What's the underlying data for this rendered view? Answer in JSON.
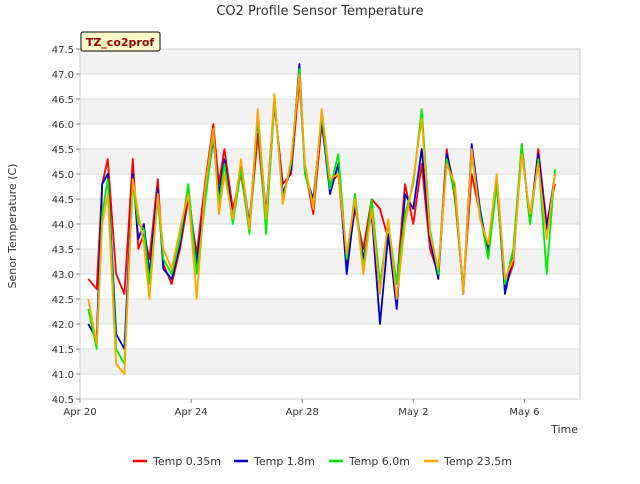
{
  "chart_data": {
    "type": "line",
    "title": "CO2 Profile Sensor Temperature",
    "xlabel": "Time",
    "ylabel": "Senor Temperature (C)",
    "site_label": "TZ_co2prof",
    "ylim": [
      40.5,
      47.5
    ],
    "xlim": [
      0,
      18
    ],
    "y_ticks": [
      40.5,
      41.0,
      41.5,
      42.0,
      42.5,
      43.0,
      43.5,
      44.0,
      44.5,
      45.0,
      45.5,
      46.0,
      46.5,
      47.0,
      47.5
    ],
    "x_ticks": [
      {
        "value": 0,
        "label": "Apr 20"
      },
      {
        "value": 4,
        "label": "Apr 24"
      },
      {
        "value": 8,
        "label": "Apr 28"
      },
      {
        "value": 12,
        "label": "May 2"
      },
      {
        "value": 16,
        "label": "May 6"
      }
    ],
    "x_units": "days since Apr 20",
    "legend_position": "bottom",
    "series": [
      {
        "name": "Temp 0.35m",
        "color": "#ff0000",
        "x": [
          0.3,
          0.6,
          0.8,
          1.0,
          1.3,
          1.6,
          1.9,
          2.1,
          2.3,
          2.5,
          2.8,
          3.0,
          3.3,
          3.6,
          3.9,
          4.2,
          4.5,
          4.8,
          5.0,
          5.2,
          5.5,
          5.8,
          6.1,
          6.4,
          6.7,
          7.0,
          7.3,
          7.6,
          7.9,
          8.1,
          8.4,
          8.7,
          9.0,
          9.3,
          9.6,
          9.9,
          10.2,
          10.5,
          10.8,
          11.1,
          11.4,
          11.7,
          12.0,
          12.3,
          12.6,
          12.9,
          13.2,
          13.5,
          13.8,
          14.1,
          14.4,
          14.7,
          15.0,
          15.3,
          15.6,
          15.9,
          16.2,
          16.5,
          16.8,
          17.1
        ],
        "y": [
          42.9,
          42.7,
          44.8,
          45.3,
          43.0,
          42.6,
          45.3,
          43.5,
          43.8,
          43.3,
          44.9,
          43.2,
          42.8,
          43.5,
          44.5,
          43.4,
          44.8,
          46.0,
          44.8,
          45.5,
          44.3,
          45.0,
          43.9,
          45.8,
          44.0,
          46.4,
          44.8,
          45.0,
          46.9,
          45.1,
          44.2,
          46.0,
          44.8,
          45.0,
          43.2,
          44.3,
          43.5,
          44.5,
          44.3,
          43.7,
          42.8,
          44.8,
          44.0,
          45.2,
          43.5,
          43.0,
          45.5,
          44.5,
          42.7,
          45.0,
          44.2,
          43.5,
          44.8,
          42.7,
          43.2,
          45.6,
          44.0,
          45.5,
          44.0,
          44.8
        ]
      },
      {
        "name": "Temp 1.8m",
        "color": "#0000cc",
        "x": [
          0.3,
          0.6,
          0.8,
          1.0,
          1.3,
          1.6,
          1.9,
          2.1,
          2.3,
          2.5,
          2.8,
          3.0,
          3.3,
          3.6,
          3.9,
          4.2,
          4.5,
          4.8,
          5.0,
          5.2,
          5.5,
          5.8,
          6.1,
          6.4,
          6.7,
          7.0,
          7.3,
          7.6,
          7.9,
          8.1,
          8.4,
          8.7,
          9.0,
          9.3,
          9.6,
          9.9,
          10.2,
          10.5,
          10.8,
          11.1,
          11.4,
          11.7,
          12.0,
          12.3,
          12.6,
          12.9,
          13.2,
          13.5,
          13.8,
          14.1,
          14.4,
          14.7,
          15.0,
          15.3,
          15.6,
          15.9,
          16.2,
          16.5,
          16.8,
          17.1
        ],
        "y": [
          42.0,
          41.7,
          44.8,
          45.0,
          41.8,
          41.5,
          45.0,
          43.7,
          44.0,
          43.0,
          44.7,
          43.1,
          42.9,
          43.6,
          44.7,
          43.2,
          44.5,
          45.7,
          44.6,
          45.3,
          44.1,
          45.2,
          44.0,
          46.1,
          44.2,
          46.5,
          44.6,
          45.1,
          47.2,
          45.0,
          44.5,
          46.1,
          44.6,
          45.2,
          43.0,
          44.4,
          43.3,
          44.2,
          42.0,
          43.8,
          42.3,
          44.6,
          44.3,
          45.5,
          43.7,
          42.9,
          45.4,
          44.7,
          42.6,
          45.6,
          44.3,
          43.4,
          44.9,
          42.6,
          43.4,
          45.5,
          44.1,
          45.4,
          43.9,
          45.0
        ]
      },
      {
        "name": "Temp 6.0m",
        "color": "#00ee00",
        "x": [
          0.3,
          0.6,
          0.8,
          1.0,
          1.3,
          1.6,
          1.9,
          2.1,
          2.3,
          2.5,
          2.8,
          3.0,
          3.3,
          3.6,
          3.9,
          4.2,
          4.5,
          4.8,
          5.0,
          5.2,
          5.5,
          5.8,
          6.1,
          6.4,
          6.7,
          7.0,
          7.3,
          7.6,
          7.9,
          8.1,
          8.4,
          8.7,
          9.0,
          9.3,
          9.6,
          9.9,
          10.2,
          10.5,
          10.8,
          11.1,
          11.4,
          11.7,
          12.0,
          12.3,
          12.6,
          12.9,
          13.2,
          13.5,
          13.8,
          14.1,
          14.4,
          14.7,
          15.0,
          15.3,
          15.6,
          15.9,
          16.2,
          16.5,
          16.8,
          17.1
        ],
        "y": [
          42.3,
          41.5,
          44.2,
          44.9,
          41.5,
          41.2,
          44.8,
          44.0,
          43.9,
          42.8,
          44.5,
          43.3,
          43.0,
          43.7,
          44.8,
          43.0,
          44.4,
          45.8,
          44.4,
          45.2,
          44.0,
          45.1,
          43.8,
          46.2,
          43.8,
          46.5,
          44.5,
          45.2,
          47.1,
          45.0,
          44.4,
          46.2,
          44.7,
          45.4,
          43.3,
          44.6,
          43.1,
          44.5,
          42.8,
          44.0,
          42.8,
          44.2,
          44.8,
          46.3,
          43.9,
          43.0,
          45.3,
          44.6,
          42.7,
          45.4,
          44.2,
          43.3,
          44.8,
          42.8,
          43.5,
          45.6,
          44.0,
          45.3,
          43.0,
          45.1
        ]
      },
      {
        "name": "Temp 23.5m",
        "color": "#ffa500",
        "x": [
          0.3,
          0.6,
          0.8,
          1.0,
          1.3,
          1.6,
          1.9,
          2.1,
          2.3,
          2.5,
          2.8,
          3.0,
          3.3,
          3.6,
          3.9,
          4.2,
          4.5,
          4.8,
          5.0,
          5.2,
          5.5,
          5.8,
          6.1,
          6.4,
          6.7,
          7.0,
          7.3,
          7.6,
          7.9,
          8.1,
          8.4,
          8.7,
          9.0,
          9.3,
          9.6,
          9.9,
          10.2,
          10.5,
          10.8,
          11.1,
          11.4,
          11.7,
          12.0,
          12.3,
          12.6,
          12.9,
          13.2,
          13.5,
          13.8,
          14.1,
          14.4,
          14.7,
          15.0,
          15.3,
          15.6,
          15.9,
          16.2,
          16.5,
          16.8,
          17.1
        ],
        "y": [
          42.5,
          41.6,
          44.0,
          44.6,
          41.2,
          41.0,
          44.9,
          44.2,
          43.6,
          42.5,
          44.6,
          43.5,
          43.1,
          43.9,
          44.6,
          42.5,
          44.7,
          45.9,
          44.2,
          45.0,
          44.1,
          45.3,
          43.9,
          46.3,
          44.1,
          46.6,
          44.4,
          45.3,
          47.0,
          45.2,
          44.3,
          46.3,
          44.9,
          45.0,
          43.4,
          44.5,
          43.0,
          44.3,
          42.6,
          44.1,
          42.5,
          44.0,
          44.9,
          46.1,
          43.8,
          43.1,
          45.2,
          44.8,
          42.6,
          45.5,
          44.1,
          43.6,
          45.0,
          42.9,
          43.3,
          45.4,
          44.2,
          45.2,
          43.7,
          45.0
        ]
      }
    ]
  }
}
